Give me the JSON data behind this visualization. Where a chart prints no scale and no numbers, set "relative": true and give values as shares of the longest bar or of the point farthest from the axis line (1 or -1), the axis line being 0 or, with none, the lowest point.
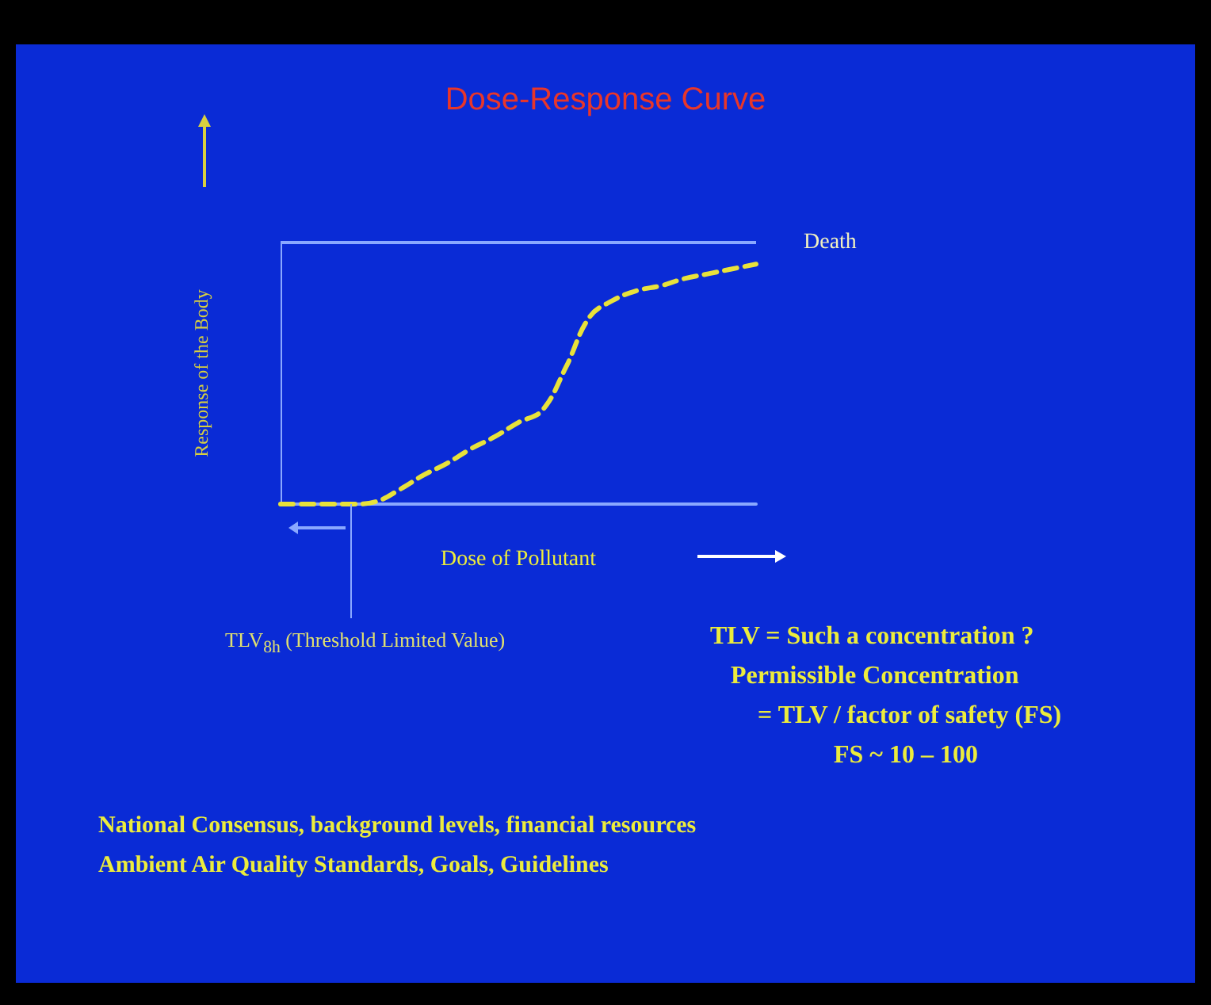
{
  "chart_data": {
    "type": "line",
    "relative": true,
    "title": "Dose-Response Curve",
    "xlabel": "Dose of Pollutant",
    "ylabel": "Response of the Body",
    "categories": [
      null,
      null,
      null,
      null,
      null,
      null,
      null,
      null,
      null,
      null,
      null,
      null,
      null,
      null,
      null,
      null,
      null,
      null,
      null,
      null,
      null
    ],
    "series": [
      {
        "color": "#e8e23a",
        "values": [
          0,
          0,
          0,
          0,
          0.01,
          0.06,
          0.12,
          0.17,
          0.23,
          0.28,
          0.34,
          0.39,
          0.57,
          0.78,
          0.85,
          0.89,
          0.91,
          0.94,
          0.96,
          0.98,
          1
        ]
      }
    ],
    "line_style": "dashed",
    "marker": "none",
    "ref_lines": [
      {
        "axis": "y",
        "value": 1.09,
        "label": "Death",
        "color": "#8aa8ff"
      }
    ],
    "annotations": [
      "TLV$_{8h}$ (Threshold Limited Value)",
      "TLV = Such a concentration ?",
      "Permissible Concentration",
      "= TLV / factor of safety (FS)",
      "FS ~ 10 – 100",
      "National Consensus, background levels, financial resources",
      "Ambient Air Quality Standards, Goals, Guidelines"
    ]
  }
}
